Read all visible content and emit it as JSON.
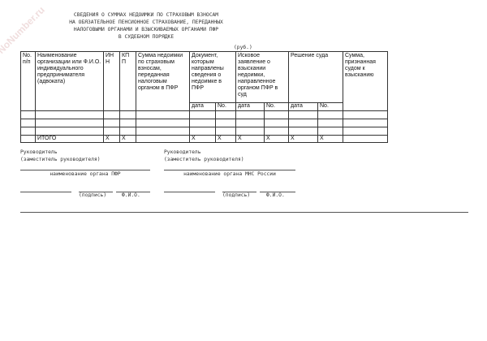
{
  "watermark": "NoNumber.ru",
  "title": [
    "СВЕДЕНИЯ О СУММАХ НЕДОИМКИ ПО СТРАХОВЫМ ВЗНОСАМ",
    "НА ОБЯЗАТЕЛЬНОЕ ПЕНСИОННОЕ СТРАХОВАНИЕ, ПЕРЕДАННЫХ",
    "НАЛОГОВЫМИ ОРГАНАМИ И ВЗЫСКИВАЕМЫХ ОРГАНАМИ ПФР",
    "В СУДЕБНОМ ПОРЯДКЕ"
  ],
  "unit": "(руб.)",
  "table": {
    "headers": [
      "No. п/п",
      "Наименование организации или Ф.И.О. индивидуального предпринимателя (адвоката)",
      "ИН Н",
      "КП П",
      "Сумма недоимки по страховым взносам, переданная налоговым органом в ПФР",
      "Документ, которым направлены сведения о недоимке в ПФР",
      "Исковое заявление о взыскании недоимки, направленное органом ПФР в суд",
      "Решение суда",
      "Сумма, признанная судом к взысканию"
    ],
    "subheaders": [
      "дата",
      "No.",
      "дата",
      "No.",
      "дата",
      "No."
    ],
    "total_label": "ИТОГО",
    "x_mark": "X"
  },
  "signatures": {
    "left": {
      "role": "Руководитель",
      "deputy": "(заместитель руководителя)",
      "org": "наименование органа ПФР",
      "sign": "(подпись)",
      "fio": "Ф.И.О."
    },
    "right": {
      "role": "Руководитель",
      "deputy": "(заместитель руководителя)",
      "org": "наименование органа МНС России",
      "sign": "(подпись)",
      "fio": "Ф.И.О."
    }
  }
}
